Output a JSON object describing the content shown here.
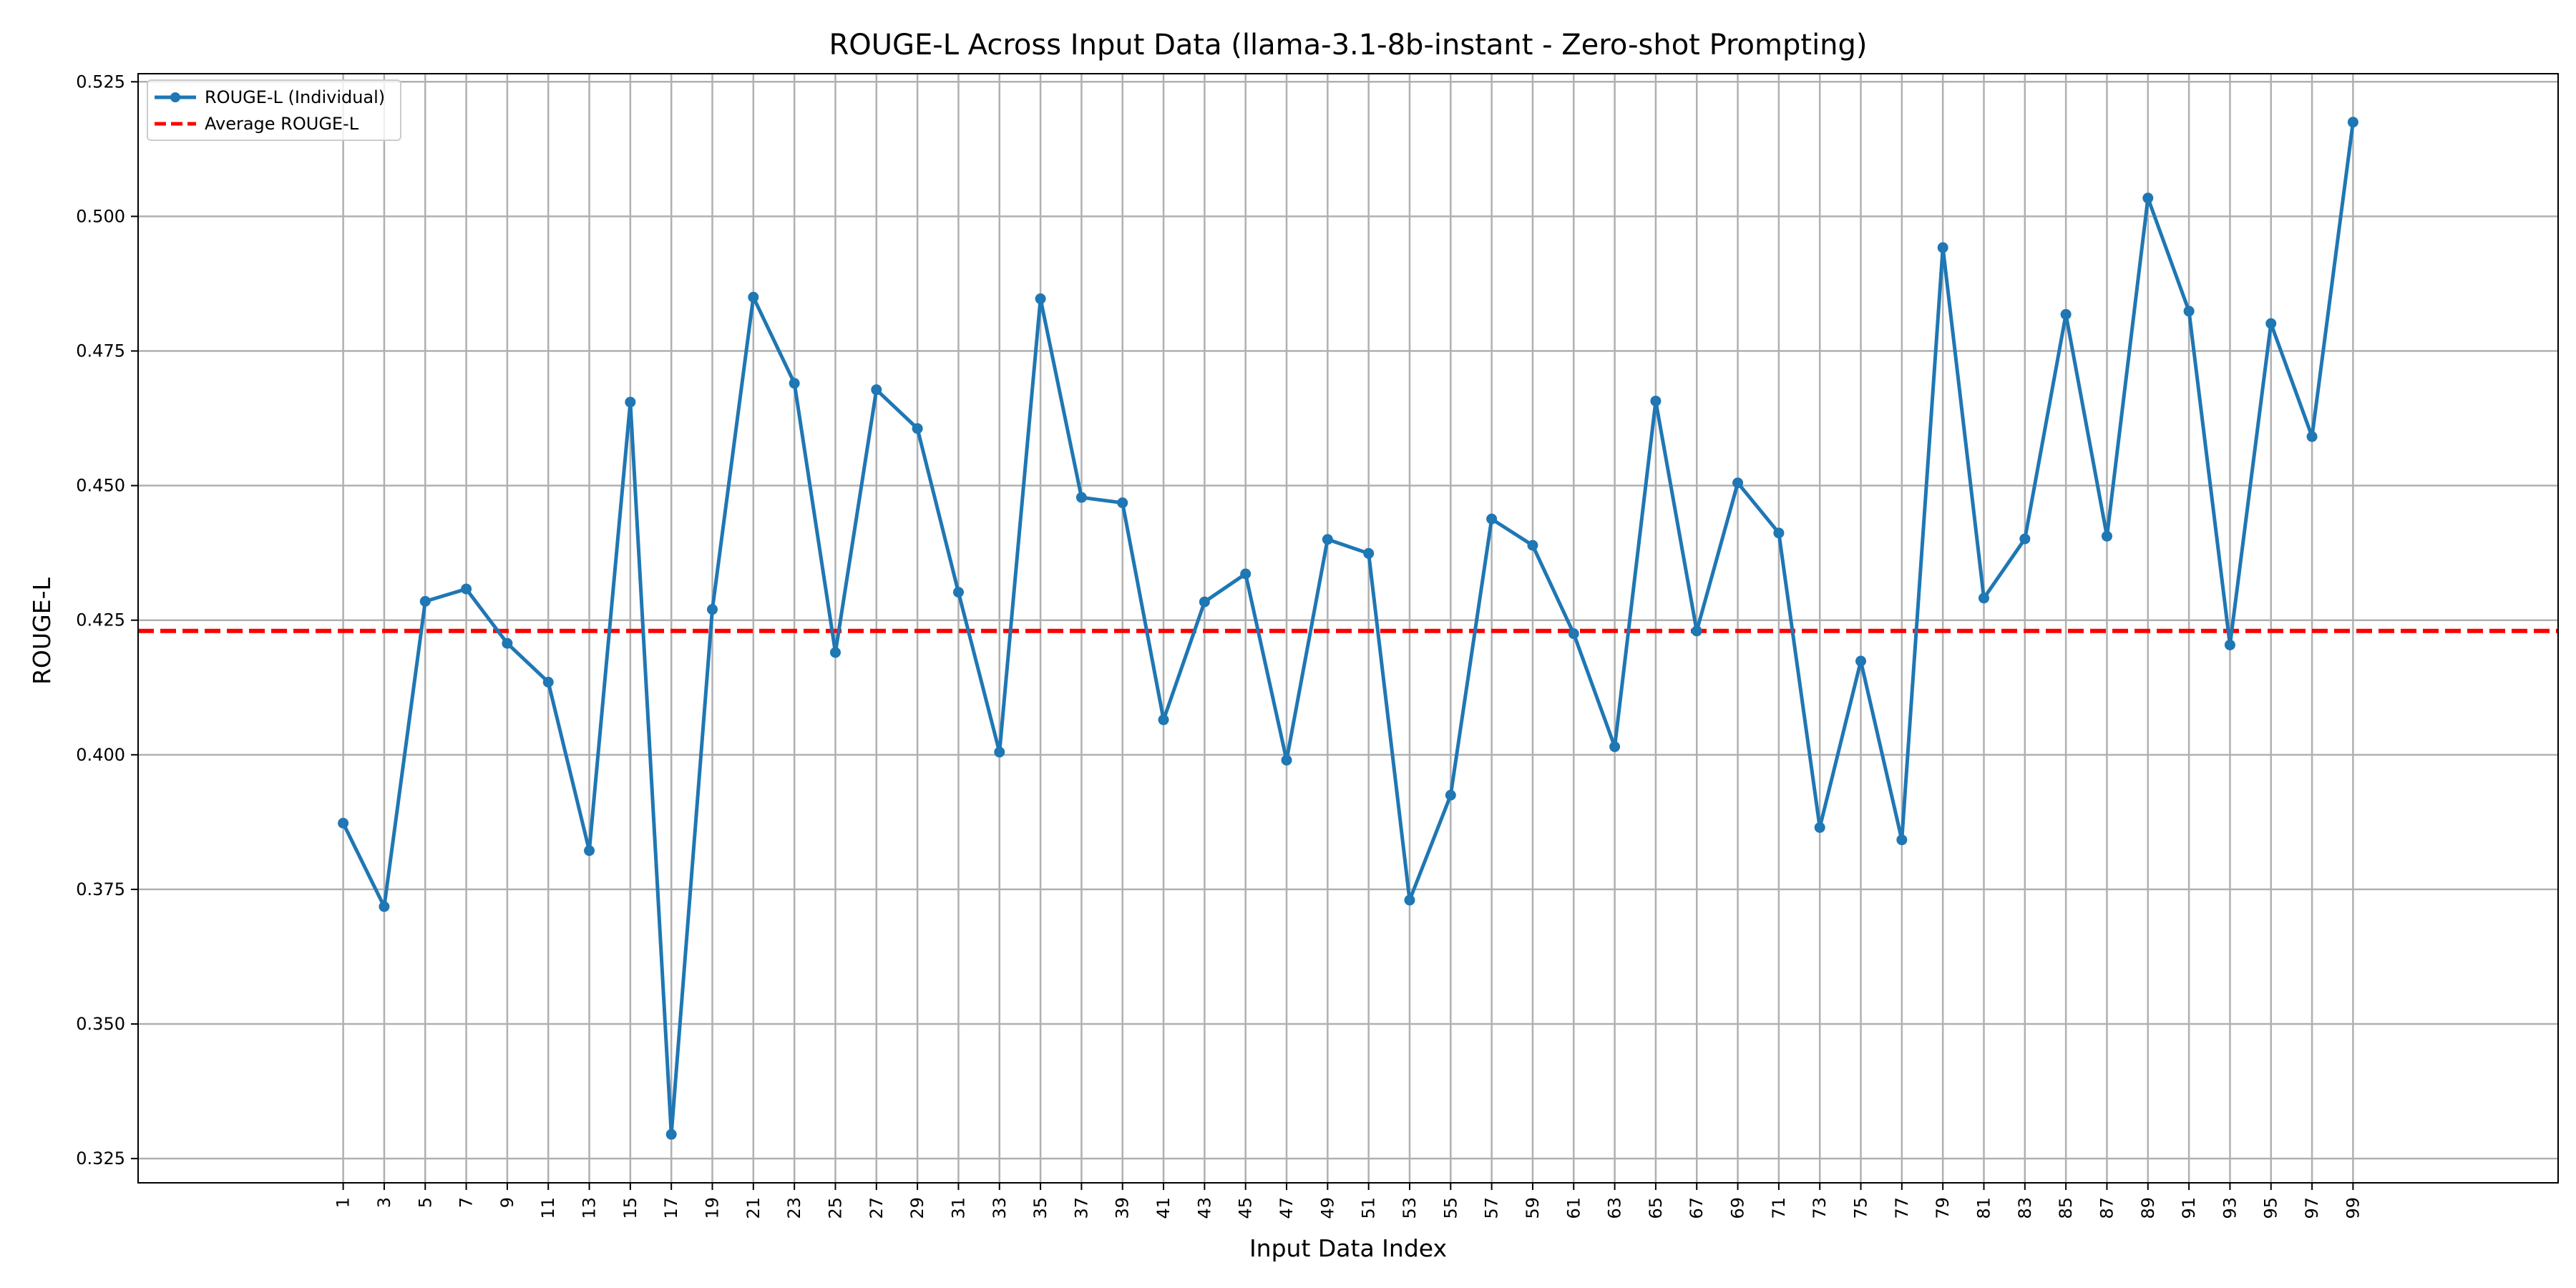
{
  "chart_data": {
    "type": "line",
    "title": "ROUGE-L Across Input Data (llama-3.1-8b-instant - Zero-shot Prompting)",
    "xlabel": "Input Data Index",
    "ylabel": "ROUGE-L",
    "x": [
      1,
      3,
      5,
      7,
      9,
      11,
      13,
      15,
      17,
      19,
      21,
      23,
      25,
      27,
      29,
      31,
      33,
      35,
      37,
      39,
      41,
      43,
      45,
      47,
      49,
      51,
      53,
      55,
      57,
      59,
      61,
      63,
      65,
      67,
      69,
      71,
      73,
      75,
      77,
      79,
      81,
      83,
      85,
      87,
      89,
      91,
      93,
      95,
      97,
      99
    ],
    "x_ticks": [
      "1",
      "3",
      "5",
      "7",
      "9",
      "11",
      "13",
      "15",
      "17",
      "19",
      "21",
      "23",
      "25",
      "27",
      "29",
      "31",
      "33",
      "35",
      "37",
      "39",
      "41",
      "43",
      "45",
      "47",
      "49",
      "51",
      "53",
      "55",
      "57",
      "59",
      "61",
      "63",
      "65",
      "67",
      "69",
      "71",
      "73",
      "75",
      "77",
      "79",
      "81",
      "83",
      "85",
      "87",
      "89",
      "91",
      "93",
      "95",
      "97",
      "99"
    ],
    "y_ticks": [
      "0.325",
      "0.350",
      "0.375",
      "0.400",
      "0.425",
      "0.450",
      "0.475",
      "0.500",
      "0.525"
    ],
    "xlim": [
      -9,
      109
    ],
    "ylim": [
      0.3205,
      0.5265
    ],
    "grid": true,
    "legend_position": "top-left",
    "series": [
      {
        "name": "ROUGE-L (Individual)",
        "color": "#1f77b4",
        "style": "solid",
        "marker": "circle",
        "values": [
          0.3873,
          0.3718,
          0.4285,
          0.4308,
          0.4207,
          0.4135,
          0.3822,
          0.4655,
          0.3295,
          0.427,
          0.485,
          0.469,
          0.419,
          0.4678,
          0.4606,
          0.4302,
          0.4005,
          0.4847,
          0.4478,
          0.4468,
          0.4065,
          0.4284,
          0.4336,
          0.399,
          0.44,
          0.4374,
          0.373,
          0.3925,
          0.4438,
          0.4389,
          0.4225,
          0.4015,
          0.4657,
          0.423,
          0.4505,
          0.4412,
          0.3865,
          0.4174,
          0.3842,
          0.4942,
          0.4291,
          0.4401,
          0.4818,
          0.4406,
          0.5034,
          0.4824,
          0.4204,
          0.4801,
          0.4591,
          0.5175
        ]
      },
      {
        "name": "Average ROUGE-L",
        "color": "#ff0000",
        "style": "dashed",
        "value": 0.423
      }
    ]
  }
}
